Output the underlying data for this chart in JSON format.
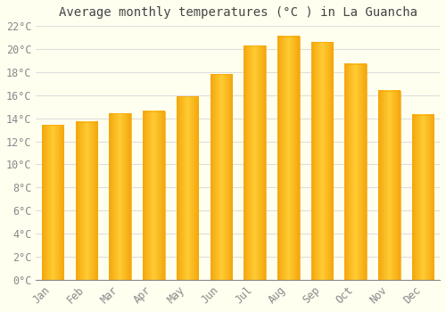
{
  "title": "Average monthly temperatures (°C ) in La Guancha",
  "months": [
    "Jan",
    "Feb",
    "Mar",
    "Apr",
    "May",
    "Jun",
    "Jul",
    "Aug",
    "Sep",
    "Oct",
    "Nov",
    "Dec"
  ],
  "temperatures": [
    13.4,
    13.7,
    14.4,
    14.6,
    15.9,
    17.8,
    20.3,
    21.1,
    20.6,
    18.7,
    16.4,
    14.3
  ],
  "bar_color_center": "#FFD060",
  "bar_color_edge": "#F5A800",
  "background_color": "#FFFFF0",
  "grid_color": "#DDDDDD",
  "tick_label_color": "#888888",
  "title_color": "#444444",
  "ylim": [
    0,
    22
  ],
  "ytick_step": 2,
  "title_fontsize": 10,
  "tick_fontsize": 8.5,
  "bar_width": 0.65
}
